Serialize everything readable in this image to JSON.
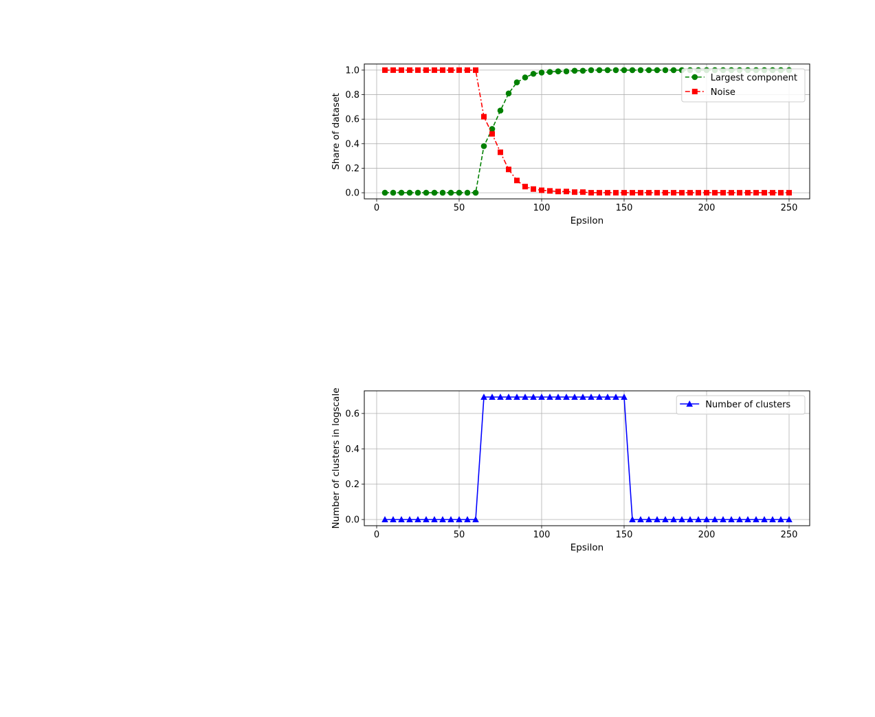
{
  "chart_data": [
    {
      "type": "line",
      "title": "",
      "xlabel": "Epsilon",
      "ylabel": "Share of dataset",
      "xlim": [
        -7.5,
        262.5
      ],
      "ylim": [
        -0.05,
        1.05
      ],
      "xticks": [
        0,
        50,
        100,
        150,
        200,
        250
      ],
      "yticks": [
        0.0,
        0.2,
        0.4,
        0.6,
        0.8,
        1.0
      ],
      "xtick_labels": [
        "0",
        "50",
        "100",
        "150",
        "200",
        "250"
      ],
      "ytick_labels": [
        "0.0",
        "0.2",
        "0.4",
        "0.6",
        "0.8",
        "1.0"
      ],
      "grid": true,
      "legend": "top-right",
      "x": [
        5,
        10,
        15,
        20,
        25,
        30,
        35,
        40,
        45,
        50,
        55,
        60,
        65,
        70,
        75,
        80,
        85,
        90,
        95,
        100,
        105,
        110,
        115,
        120,
        125,
        130,
        135,
        140,
        145,
        150,
        155,
        160,
        165,
        170,
        175,
        180,
        185,
        190,
        195,
        200,
        205,
        210,
        215,
        220,
        225,
        230,
        235,
        240,
        245,
        250
      ],
      "series": [
        {
          "name": "Largest component",
          "color": "#008000",
          "linestyle": "dashed",
          "marker": "circle",
          "values": [
            0,
            0,
            0,
            0,
            0,
            0,
            0,
            0,
            0,
            0,
            0,
            0,
            0.38,
            0.52,
            0.67,
            0.81,
            0.9,
            0.94,
            0.97,
            0.98,
            0.985,
            0.99,
            0.99,
            0.995,
            0.995,
            1,
            1,
            1,
            1,
            1,
            1,
            1,
            1,
            1,
            1,
            1,
            1,
            1,
            1,
            1,
            1,
            1,
            1,
            1,
            1,
            1,
            1,
            1,
            1,
            1
          ]
        },
        {
          "name": "Noise",
          "color": "#ff0000",
          "linestyle": "dashdot",
          "marker": "square",
          "values": [
            1,
            1,
            1,
            1,
            1,
            1,
            1,
            1,
            1,
            1,
            1,
            1,
            0.62,
            0.48,
            0.33,
            0.19,
            0.1,
            0.05,
            0.03,
            0.02,
            0.015,
            0.01,
            0.01,
            0.005,
            0.005,
            0,
            0,
            0,
            0,
            0,
            0,
            0,
            0,
            0,
            0,
            0,
            0,
            0,
            0,
            0,
            0,
            0,
            0,
            0,
            0,
            0,
            0,
            0,
            0,
            0
          ]
        }
      ]
    },
    {
      "type": "line",
      "title": "",
      "xlabel": "Epsilon",
      "ylabel": "Number of clusters in logscale",
      "xlim": [
        -7.5,
        262.5
      ],
      "ylim": [
        -0.035,
        0.728
      ],
      "xticks": [
        0,
        50,
        100,
        150,
        200,
        250
      ],
      "yticks": [
        0.0,
        0.2,
        0.4,
        0.6
      ],
      "xtick_labels": [
        "0",
        "50",
        "100",
        "150",
        "200",
        "250"
      ],
      "ytick_labels": [
        "0.0",
        "0.2",
        "0.4",
        "0.6"
      ],
      "grid": true,
      "legend": "top-right",
      "x": [
        5,
        10,
        15,
        20,
        25,
        30,
        35,
        40,
        45,
        50,
        55,
        60,
        65,
        70,
        75,
        80,
        85,
        90,
        95,
        100,
        105,
        110,
        115,
        120,
        125,
        130,
        135,
        140,
        145,
        150,
        155,
        160,
        165,
        170,
        175,
        180,
        185,
        190,
        195,
        200,
        205,
        210,
        215,
        220,
        225,
        230,
        235,
        240,
        245,
        250
      ],
      "series": [
        {
          "name": "Number of clusters",
          "color": "#0000ff",
          "linestyle": "solid",
          "marker": "triangle",
          "values": [
            0,
            0,
            0,
            0,
            0,
            0,
            0,
            0,
            0,
            0,
            0,
            0,
            0.693,
            0.693,
            0.693,
            0.693,
            0.693,
            0.693,
            0.693,
            0.693,
            0.693,
            0.693,
            0.693,
            0.693,
            0.693,
            0.693,
            0.693,
            0.693,
            0.693,
            0.693,
            0,
            0,
            0,
            0,
            0,
            0,
            0,
            0,
            0,
            0,
            0,
            0,
            0,
            0,
            0,
            0,
            0,
            0,
            0,
            0
          ]
        }
      ]
    }
  ]
}
